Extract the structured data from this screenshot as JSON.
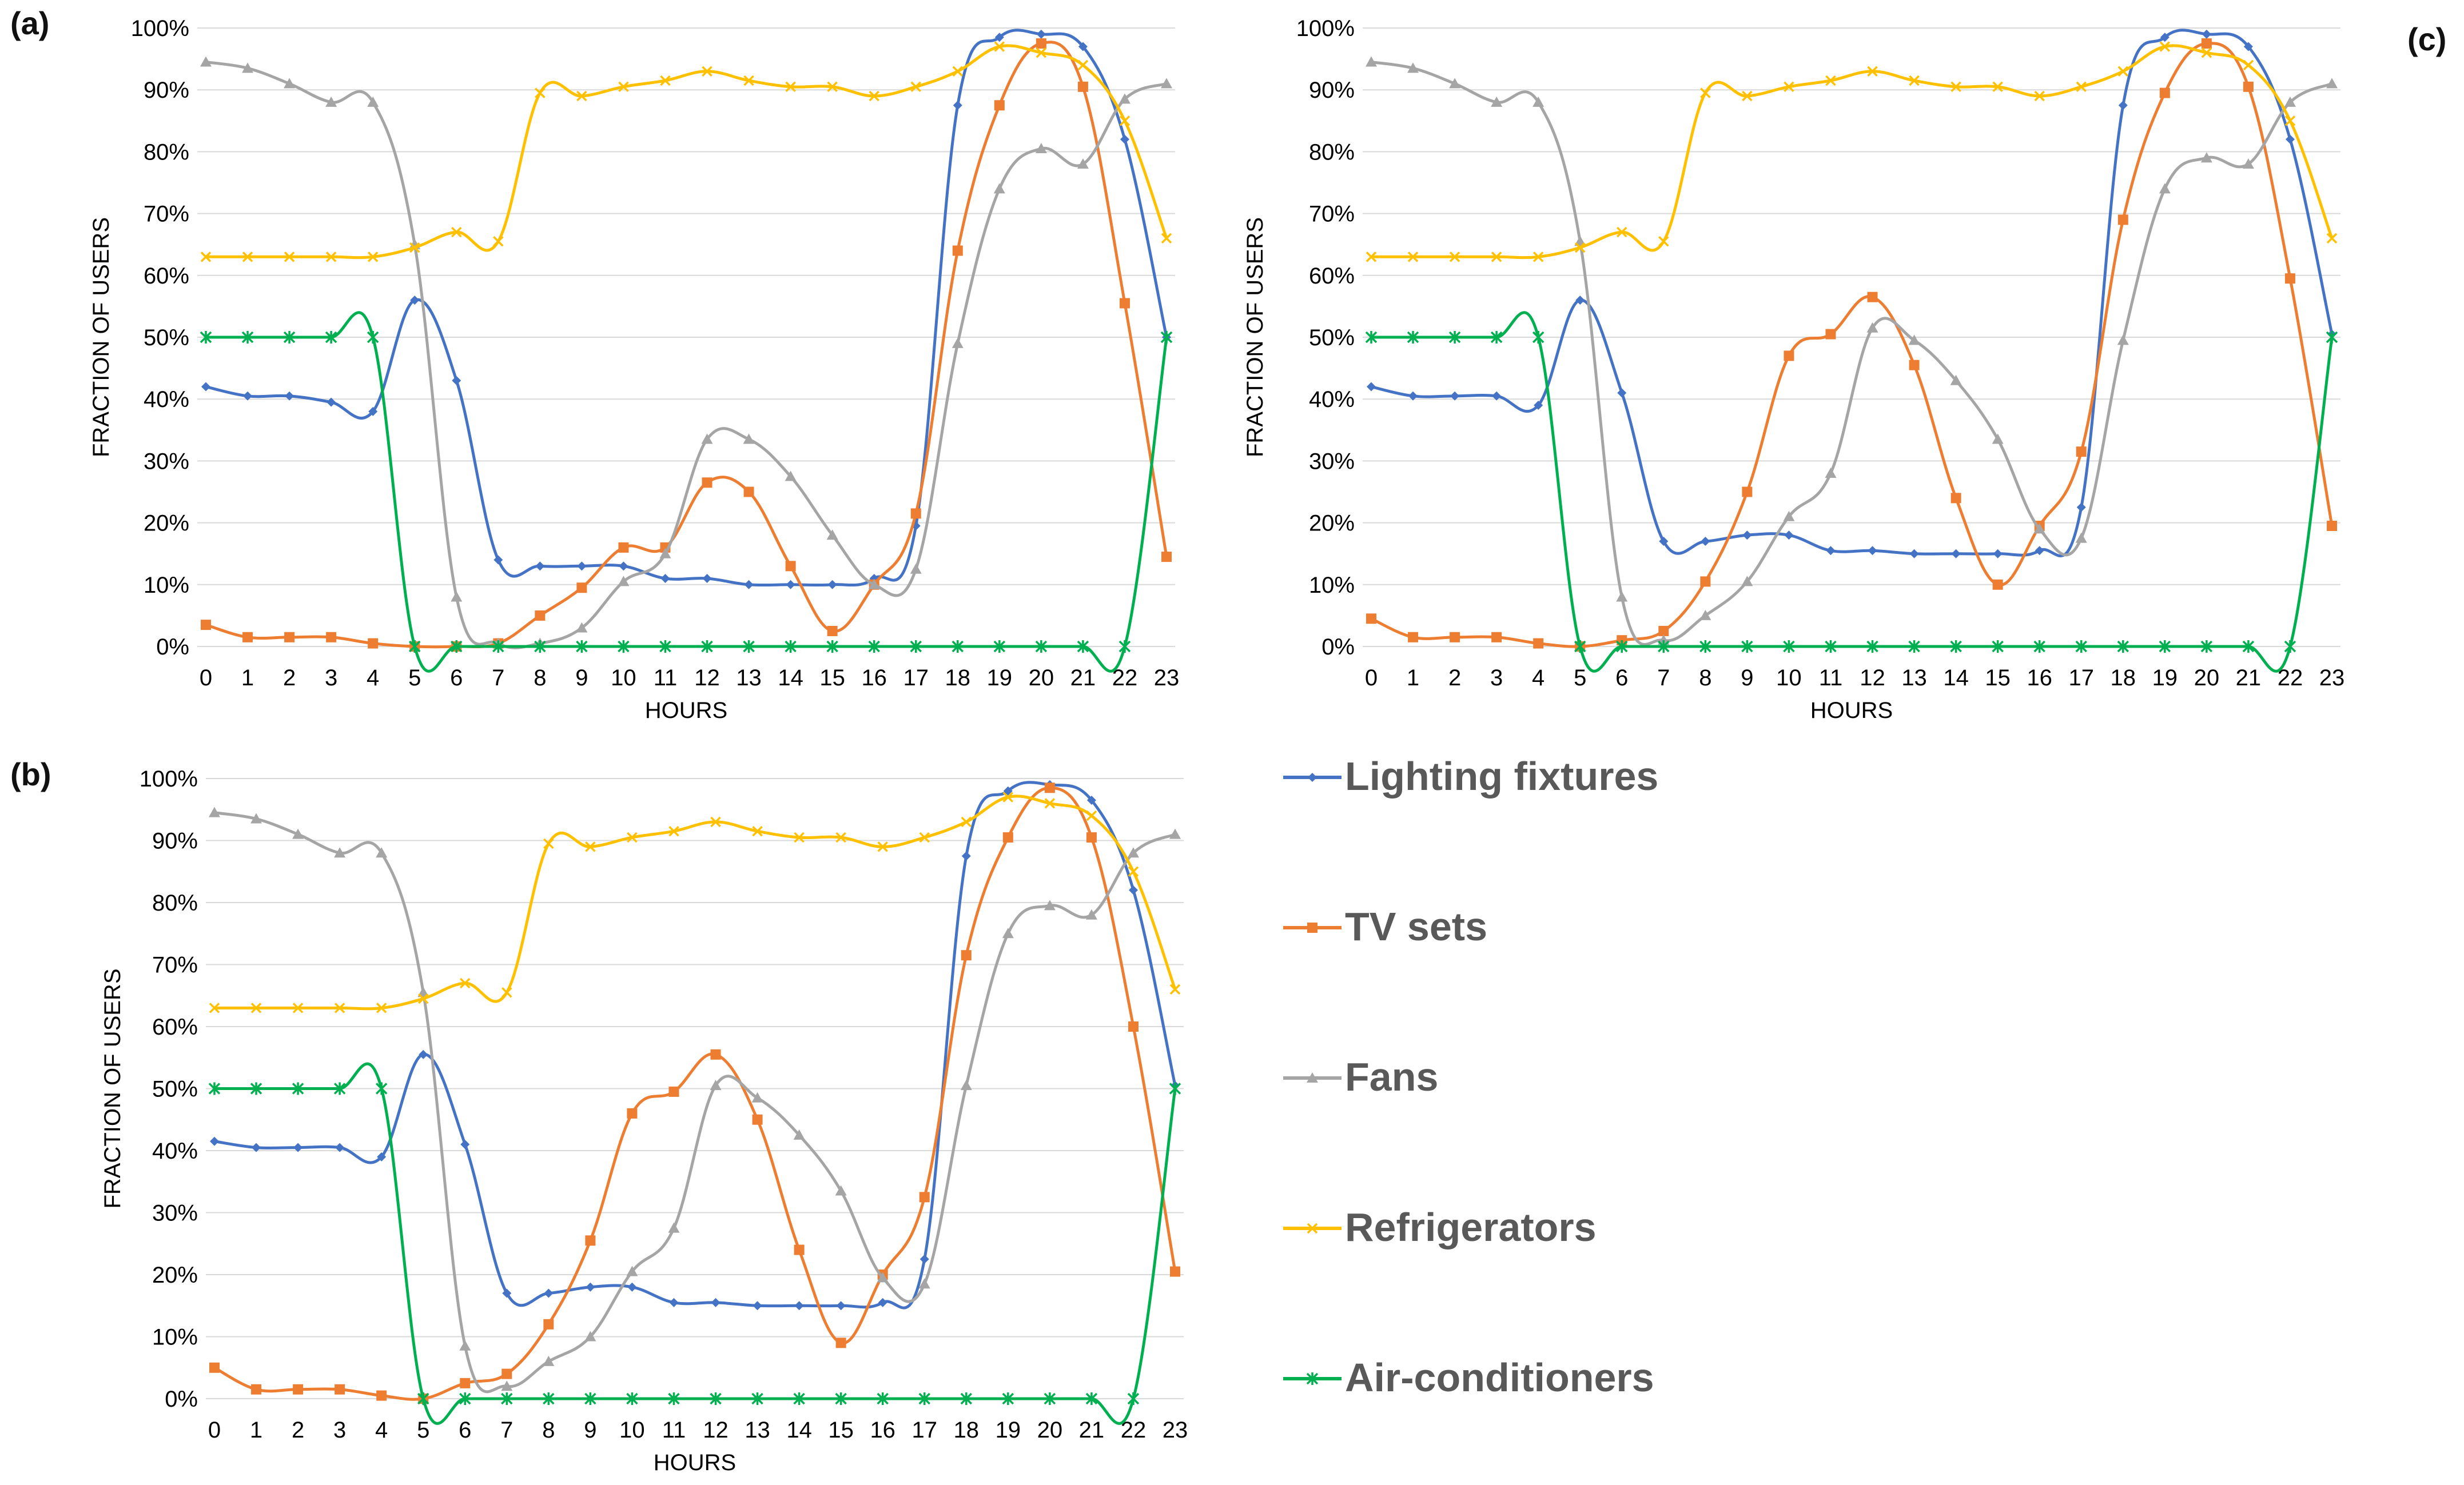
{
  "panel_labels": [
    "(a)",
    "(b)",
    "(c)"
  ],
  "series_style": [
    {
      "name": "Lighting fixtures",
      "color": "#4472C4",
      "marker": "diamond"
    },
    {
      "name": "TV sets",
      "color": "#ED7D31",
      "marker": "square"
    },
    {
      "name": "Fans",
      "color": "#A5A5A5",
      "marker": "triangle"
    },
    {
      "name": "Refrigerators",
      "color": "#FFC000",
      "marker": "x"
    },
    {
      "name": "Air-conditioners",
      "color": "#00B050",
      "marker": "star"
    }
  ],
  "legend": {
    "items": [
      "Lighting fixtures",
      "TV sets",
      "Fans",
      "Refrigerators",
      "Air-conditioners"
    ]
  },
  "chart_data": [
    {
      "id": "a",
      "type": "line",
      "title": "",
      "xlabel": "HOURS",
      "ylabel": "FRACTION OF USERS",
      "categories": [
        "0",
        "1",
        "2",
        "3",
        "4",
        "5",
        "6",
        "7",
        "8",
        "9",
        "10",
        "11",
        "12",
        "13",
        "14",
        "15",
        "16",
        "17",
        "18",
        "19",
        "20",
        "21",
        "22",
        "23"
      ],
      "ylim": [
        0,
        100
      ],
      "yticks": [
        "0%",
        "10%",
        "20%",
        "30%",
        "40%",
        "50%",
        "60%",
        "70%",
        "80%",
        "90%",
        "100%"
      ],
      "series": [
        {
          "name": "Lighting fixtures",
          "values": [
            42,
            40.5,
            40.5,
            39.5,
            38,
            56,
            43,
            14,
            13,
            13,
            13,
            11,
            11,
            10,
            10,
            10,
            11,
            19.5,
            87.5,
            98.5,
            99,
            97,
            82,
            50
          ]
        },
        {
          "name": "TV sets",
          "values": [
            3.5,
            1.5,
            1.5,
            1.5,
            0.5,
            0,
            0,
            0.5,
            5,
            9.5,
            16,
            16,
            26.5,
            25,
            13,
            2.5,
            10,
            21.5,
            64,
            87.5,
            97.5,
            90.5,
            55.5,
            14.5
          ]
        },
        {
          "name": "Fans",
          "values": [
            94.5,
            93.5,
            91,
            88,
            88,
            65,
            8,
            0.5,
            0.5,
            3,
            10.5,
            15,
            33.5,
            33.5,
            27.5,
            18,
            10,
            12.5,
            49,
            74,
            80.5,
            78,
            88.5,
            91
          ]
        },
        {
          "name": "Refrigerators",
          "values": [
            63,
            63,
            63,
            63,
            63,
            64.5,
            67,
            65.5,
            89.5,
            89,
            90.5,
            91.5,
            93,
            91.5,
            90.5,
            90.5,
            89,
            90.5,
            93,
            97,
            96,
            94,
            85,
            66
          ]
        },
        {
          "name": "Air-conditioners",
          "values": [
            50,
            50,
            50,
            50,
            50,
            0,
            0,
            0,
            0,
            0,
            0,
            0,
            0,
            0,
            0,
            0,
            0,
            0,
            0,
            0,
            0,
            0,
            0,
            50
          ]
        }
      ]
    },
    {
      "id": "b",
      "type": "line",
      "title": "",
      "xlabel": "HOURS",
      "ylabel": "FRACTION OF USERS",
      "categories": [
        "0",
        "1",
        "2",
        "3",
        "4",
        "5",
        "6",
        "7",
        "8",
        "9",
        "10",
        "11",
        "12",
        "13",
        "14",
        "15",
        "16",
        "17",
        "18",
        "19",
        "20",
        "21",
        "22",
        "23"
      ],
      "ylim": [
        0,
        100
      ],
      "yticks": [
        "0%",
        "10%",
        "20%",
        "30%",
        "40%",
        "50%",
        "60%",
        "70%",
        "80%",
        "90%",
        "100%"
      ],
      "series": [
        {
          "name": "Lighting fixtures",
          "values": [
            41.5,
            40.5,
            40.5,
            40.5,
            39,
            55.5,
            41,
            17,
            17,
            18,
            18,
            15.5,
            15.5,
            15,
            15,
            15,
            15.5,
            22.5,
            87.5,
            98,
            99,
            96.5,
            82,
            50.5
          ]
        },
        {
          "name": "TV sets",
          "values": [
            5,
            1.5,
            1.5,
            1.5,
            0.5,
            0,
            2.5,
            4,
            12,
            25.5,
            46,
            49.5,
            55.5,
            45,
            24,
            9,
            20,
            32.5,
            71.5,
            90.5,
            98.5,
            90.5,
            60,
            20.5
          ]
        },
        {
          "name": "Fans",
          "values": [
            94.5,
            93.5,
            91,
            88,
            88,
            65.5,
            8.5,
            2,
            6,
            10,
            20.5,
            27.5,
            50.5,
            48.5,
            42.5,
            33.5,
            19.5,
            18.5,
            50.5,
            75,
            79.5,
            78,
            88,
            91
          ]
        },
        {
          "name": "Refrigerators",
          "values": [
            63,
            63,
            63,
            63,
            63,
            64.5,
            67,
            65.5,
            89.5,
            89,
            90.5,
            91.5,
            93,
            91.5,
            90.5,
            90.5,
            89,
            90.5,
            93,
            97,
            96,
            94,
            85,
            66
          ]
        },
        {
          "name": "Air-conditioners",
          "values": [
            50,
            50,
            50,
            50,
            50,
            0,
            0,
            0,
            0,
            0,
            0,
            0,
            0,
            0,
            0,
            0,
            0,
            0,
            0,
            0,
            0,
            0,
            0,
            50
          ]
        }
      ]
    },
    {
      "id": "c",
      "type": "line",
      "title": "",
      "xlabel": "HOURS",
      "ylabel": "FRACTION OF USERS",
      "categories": [
        "0",
        "1",
        "2",
        "3",
        "4",
        "5",
        "6",
        "7",
        "8",
        "9",
        "10",
        "11",
        "12",
        "13",
        "14",
        "15",
        "16",
        "17",
        "18",
        "19",
        "20",
        "21",
        "22",
        "23"
      ],
      "ylim": [
        0,
        100
      ],
      "yticks": [
        "0%",
        "10%",
        "20%",
        "30%",
        "40%",
        "50%",
        "60%",
        "70%",
        "80%",
        "90%",
        "100%"
      ],
      "series": [
        {
          "name": "Lighting fixtures",
          "values": [
            42,
            40.5,
            40.5,
            40.5,
            39,
            56,
            41,
            17,
            17,
            18,
            18,
            15.5,
            15.5,
            15,
            15,
            15,
            15.5,
            22.5,
            87.5,
            98.5,
            99,
            97,
            82,
            50.5
          ]
        },
        {
          "name": "TV sets",
          "values": [
            4.5,
            1.5,
            1.5,
            1.5,
            0.5,
            0,
            1,
            2.5,
            10.5,
            25,
            47,
            50.5,
            56.5,
            45.5,
            24,
            10,
            19.5,
            31.5,
            69,
            89.5,
            97.5,
            90.5,
            59.5,
            19.5
          ]
        },
        {
          "name": "Fans",
          "values": [
            94.5,
            93.5,
            91,
            88,
            88,
            65.5,
            8,
            1,
            5,
            10.5,
            21,
            28,
            51.5,
            49.5,
            43,
            33.5,
            19,
            17.5,
            49.5,
            74,
            79,
            78,
            88,
            91
          ]
        },
        {
          "name": "Refrigerators",
          "values": [
            63,
            63,
            63,
            63,
            63,
            64.5,
            67,
            65.5,
            89.5,
            89,
            90.5,
            91.5,
            93,
            91.5,
            90.5,
            90.5,
            89,
            90.5,
            93,
            97,
            96,
            94,
            85,
            66
          ]
        },
        {
          "name": "Air-conditioners",
          "values": [
            50,
            50,
            50,
            50,
            50,
            0,
            0,
            0,
            0,
            0,
            0,
            0,
            0,
            0,
            0,
            0,
            0,
            0,
            0,
            0,
            0,
            0,
            0,
            50
          ]
        }
      ]
    }
  ]
}
